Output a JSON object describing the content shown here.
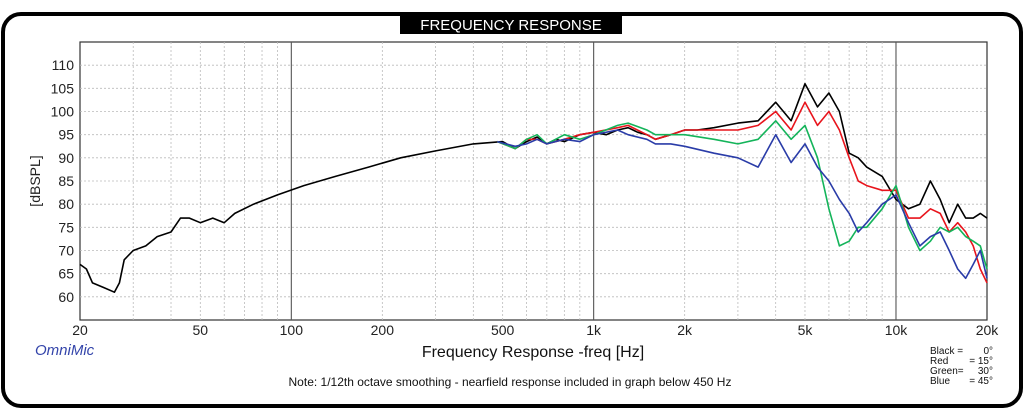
{
  "panel": {
    "title": "FREQUENCY RESPONSE",
    "brand": "OmniMic",
    "note": "Note: 1/12th octave smoothing - nearfield response included in graph below 450 Hz"
  },
  "legend": [
    {
      "label": "Black =",
      "angle": "0°",
      "color": "#000000"
    },
    {
      "label": "Red",
      "angle": "= 15°",
      "color": "#e8141c"
    },
    {
      "label": "Green=",
      "angle": "30°",
      "color": "#14b45a"
    },
    {
      "label": "Blue",
      "angle": "= 45°",
      "color": "#2a3ca8"
    }
  ],
  "chart_data": {
    "type": "line",
    "xlabel": "Frequency Response -freq [Hz]",
    "ylabel": "[dBSPL]",
    "xscale": "log",
    "xlim": [
      20,
      20000
    ],
    "ylim": [
      55,
      115
    ],
    "grid": true,
    "legend_position": "bottom-right",
    "x_tick_labels": [
      {
        "value": 20,
        "label": "20"
      },
      {
        "value": 50,
        "label": "50"
      },
      {
        "value": 100,
        "label": "100"
      },
      {
        "value": 200,
        "label": "200"
      },
      {
        "value": 500,
        "label": "500"
      },
      {
        "value": 1000,
        "label": "1k"
      },
      {
        "value": 2000,
        "label": "2k"
      },
      {
        "value": 5000,
        "label": "5k"
      },
      {
        "value": 10000,
        "label": "10k"
      },
      {
        "value": 20000,
        "label": "20k"
      }
    ],
    "y_ticks": [
      60,
      65,
      70,
      75,
      80,
      85,
      90,
      95,
      100,
      105,
      110
    ],
    "series": [
      {
        "name": "Black = 0°",
        "color": "#000000",
        "points": [
          [
            20,
            67
          ],
          [
            21,
            66
          ],
          [
            22,
            63
          ],
          [
            24,
            62
          ],
          [
            26,
            61
          ],
          [
            27,
            63
          ],
          [
            28,
            68
          ],
          [
            30,
            70
          ],
          [
            33,
            71
          ],
          [
            36,
            73
          ],
          [
            40,
            74
          ],
          [
            43,
            77
          ],
          [
            46,
            77
          ],
          [
            50,
            76
          ],
          [
            55,
            77
          ],
          [
            60,
            76
          ],
          [
            65,
            78
          ],
          [
            75,
            80
          ],
          [
            90,
            82
          ],
          [
            110,
            84
          ],
          [
            140,
            86
          ],
          [
            180,
            88
          ],
          [
            230,
            90
          ],
          [
            300,
            91.5
          ],
          [
            400,
            93
          ],
          [
            500,
            93.5
          ],
          [
            550,
            92
          ],
          [
            600,
            93.5
          ],
          [
            650,
            94.5
          ],
          [
            700,
            93
          ],
          [
            750,
            94
          ],
          [
            800,
            93.5
          ],
          [
            900,
            95
          ],
          [
            1000,
            95.5
          ],
          [
            1100,
            95
          ],
          [
            1200,
            96
          ],
          [
            1300,
            96.5
          ],
          [
            1400,
            95.5
          ],
          [
            1500,
            95
          ],
          [
            1600,
            94
          ],
          [
            1800,
            95
          ],
          [
            2000,
            96
          ],
          [
            2200,
            96
          ],
          [
            2500,
            96.5
          ],
          [
            3000,
            97.5
          ],
          [
            3500,
            98
          ],
          [
            4000,
            102
          ],
          [
            4500,
            98
          ],
          [
            5000,
            106
          ],
          [
            5500,
            101
          ],
          [
            6000,
            104
          ],
          [
            6500,
            100
          ],
          [
            7000,
            91
          ],
          [
            7500,
            90
          ],
          [
            8000,
            88
          ],
          [
            9000,
            86
          ],
          [
            10000,
            81
          ],
          [
            11000,
            79
          ],
          [
            12000,
            80
          ],
          [
            13000,
            85
          ],
          [
            14000,
            81
          ],
          [
            15000,
            76
          ],
          [
            16000,
            80
          ],
          [
            17000,
            77
          ],
          [
            18000,
            77
          ],
          [
            19000,
            78
          ],
          [
            20000,
            77
          ]
        ]
      },
      {
        "name": "Red = 15°",
        "color": "#e8141c",
        "points": [
          [
            480,
            93.5
          ],
          [
            550,
            92
          ],
          [
            600,
            94
          ],
          [
            650,
            94
          ],
          [
            700,
            93
          ],
          [
            800,
            94
          ],
          [
            900,
            95
          ],
          [
            1000,
            95.5
          ],
          [
            1200,
            96.5
          ],
          [
            1300,
            97
          ],
          [
            1500,
            95
          ],
          [
            1600,
            94
          ],
          [
            1800,
            95
          ],
          [
            2000,
            96
          ],
          [
            2500,
            96
          ],
          [
            3000,
            96
          ],
          [
            3500,
            97
          ],
          [
            4000,
            100
          ],
          [
            4500,
            96
          ],
          [
            5000,
            102
          ],
          [
            5500,
            97
          ],
          [
            6000,
            100
          ],
          [
            6500,
            96
          ],
          [
            7000,
            90
          ],
          [
            7500,
            85
          ],
          [
            8000,
            84
          ],
          [
            9000,
            83
          ],
          [
            10000,
            83
          ],
          [
            11000,
            77
          ],
          [
            12000,
            77
          ],
          [
            13000,
            79
          ],
          [
            14000,
            78
          ],
          [
            15000,
            74
          ],
          [
            16000,
            76
          ],
          [
            17000,
            74
          ],
          [
            18000,
            71
          ],
          [
            19000,
            66
          ],
          [
            20000,
            63
          ]
        ]
      },
      {
        "name": "Green= 30°",
        "color": "#14b45a",
        "points": [
          [
            480,
            93.5
          ],
          [
            550,
            92
          ],
          [
            600,
            94
          ],
          [
            650,
            95
          ],
          [
            700,
            93
          ],
          [
            800,
            95
          ],
          [
            900,
            94
          ],
          [
            1000,
            95
          ],
          [
            1200,
            97
          ],
          [
            1300,
            97.5
          ],
          [
            1500,
            96
          ],
          [
            1600,
            95
          ],
          [
            1800,
            95
          ],
          [
            2000,
            95
          ],
          [
            2500,
            94
          ],
          [
            3000,
            93
          ],
          [
            3500,
            94
          ],
          [
            4000,
            98
          ],
          [
            4500,
            94
          ],
          [
            5000,
            97
          ],
          [
            5500,
            90
          ],
          [
            6000,
            79
          ],
          [
            6500,
            71
          ],
          [
            7000,
            72
          ],
          [
            7500,
            75
          ],
          [
            8000,
            75
          ],
          [
            9000,
            79
          ],
          [
            10000,
            84
          ],
          [
            11000,
            75
          ],
          [
            12000,
            70
          ],
          [
            13000,
            72
          ],
          [
            14000,
            75
          ],
          [
            15000,
            74
          ],
          [
            16000,
            75
          ],
          [
            17000,
            73
          ],
          [
            18000,
            72
          ],
          [
            19000,
            71
          ],
          [
            20000,
            66
          ]
        ]
      },
      {
        "name": "Blue = 45°",
        "color": "#2a3ca8",
        "points": [
          [
            480,
            93.5
          ],
          [
            550,
            92.5
          ],
          [
            600,
            93
          ],
          [
            650,
            94
          ],
          [
            700,
            93
          ],
          [
            800,
            94
          ],
          [
            900,
            93.5
          ],
          [
            1000,
            95
          ],
          [
            1200,
            96
          ],
          [
            1300,
            95
          ],
          [
            1500,
            94
          ],
          [
            1600,
            93
          ],
          [
            1800,
            93
          ],
          [
            2000,
            92.5
          ],
          [
            2500,
            91
          ],
          [
            3000,
            90
          ],
          [
            3500,
            88
          ],
          [
            4000,
            95
          ],
          [
            4500,
            89
          ],
          [
            5000,
            93
          ],
          [
            5500,
            88
          ],
          [
            6000,
            85
          ],
          [
            6500,
            81
          ],
          [
            7000,
            78
          ],
          [
            7500,
            74
          ],
          [
            8000,
            76
          ],
          [
            9000,
            80
          ],
          [
            10000,
            82
          ],
          [
            11000,
            76
          ],
          [
            12000,
            71
          ],
          [
            13000,
            73
          ],
          [
            14000,
            74
          ],
          [
            15000,
            70
          ],
          [
            16000,
            66
          ],
          [
            17000,
            64
          ],
          [
            18000,
            67
          ],
          [
            19000,
            70
          ],
          [
            20000,
            64
          ]
        ]
      }
    ]
  }
}
